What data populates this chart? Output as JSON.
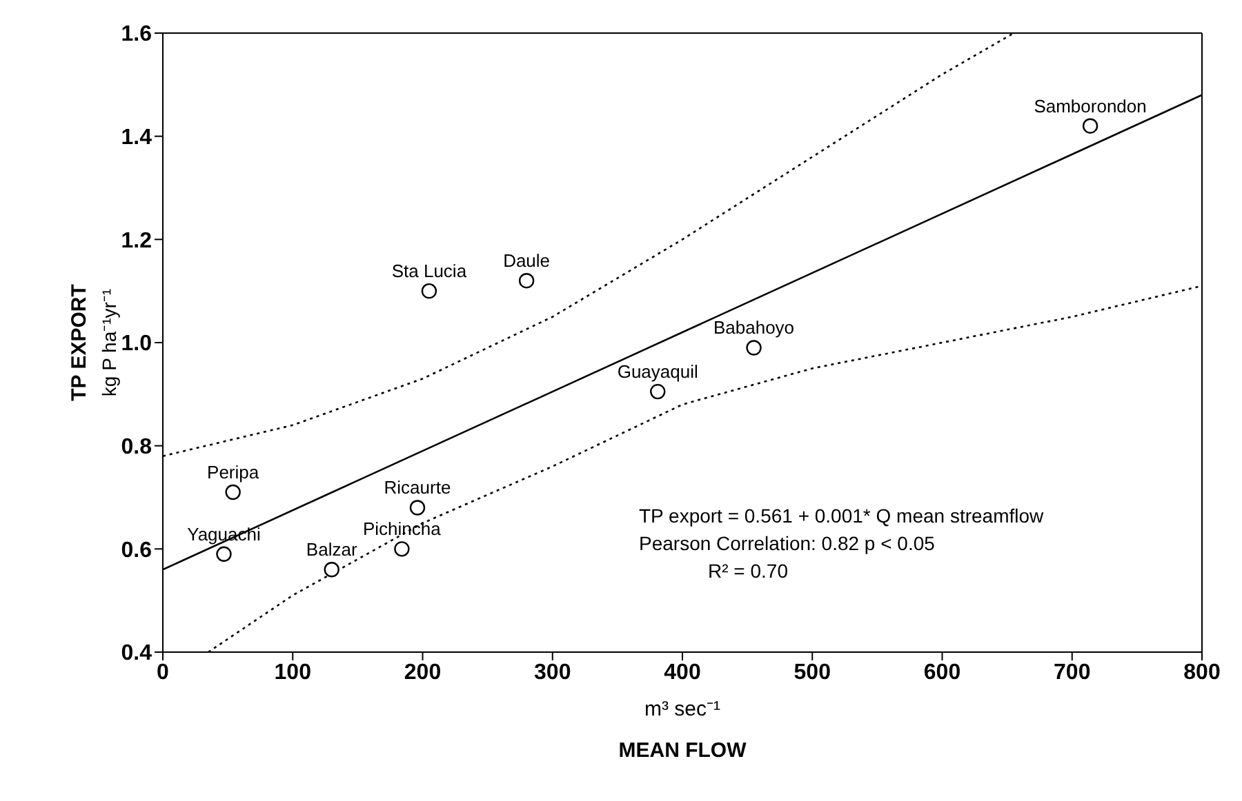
{
  "chart_data": {
    "type": "scatter",
    "xlabel": "m³ sec⁻¹\nMEAN FLOW",
    "ylabel": "TP EXPORT\nkg P ha⁻¹yr⁻¹",
    "xlim": [
      0,
      800
    ],
    "xticks": [
      0,
      100,
      200,
      300,
      400,
      500,
      600,
      700,
      800
    ],
    "ylim": [
      0.4,
      1.6
    ],
    "yticks": [
      0.4,
      0.6,
      0.8,
      {
        "value": 1,
        "label": "1.0"
      },
      1.2,
      1.4,
      1.6
    ],
    "grid": false,
    "legend": false,
    "series": [
      {
        "marker": "circle",
        "color": "#000000",
        "x": [
          714,
          280,
          205,
          455,
          381,
          54,
          196,
          47,
          184,
          130
        ],
        "values": [
          1.42,
          1.12,
          1.1,
          0.99,
          0.905,
          0.71,
          0.68,
          0.59,
          0.6,
          0.56
        ]
      },
      {
        "type": "line",
        "marker": "none",
        "color": "#000000",
        "line_style": "solid",
        "x": [
          0,
          800
        ],
        "values": [
          0.56,
          1.48
        ]
      },
      {
        "type": "line",
        "marker": "none",
        "color": "#000000",
        "line_style": "dotted",
        "x": [
          0,
          100,
          200,
          300,
          400,
          500,
          600,
          655
        ],
        "values": [
          0.78,
          0.84,
          0.93,
          1.05,
          1.2,
          1.36,
          1.52,
          1.6
        ]
      },
      {
        "type": "line",
        "marker": "none",
        "color": "#000000",
        "line_style": "dotted",
        "x": [
          35,
          100,
          200,
          300,
          400,
          500,
          600,
          700,
          800
        ],
        "values": [
          0.4,
          0.51,
          0.65,
          0.76,
          0.88,
          0.95,
          1.0,
          1.05,
          1.11
        ]
      }
    ],
    "annotations": [
      {
        "text": "Samborondon",
        "x": 714,
        "y": 1.42
      },
      {
        "text": "Daule",
        "x": 280,
        "y": 1.12
      },
      {
        "text": "Sta Lucia",
        "x": 205,
        "y": 1.1
      },
      {
        "text": "Babahoyo",
        "x": 455,
        "y": 0.99
      },
      {
        "text": "Guayaquil",
        "x": 381,
        "y": 0.905
      },
      {
        "text": "Peripa",
        "x": 54,
        "y": 0.71
      },
      {
        "text": "Ricaurte",
        "x": 196,
        "y": 0.68
      },
      {
        "text": "Yaguachi",
        "x": 47,
        "y": 0.59
      },
      {
        "text": "Pichincha",
        "x": 184,
        "y": 0.6
      },
      {
        "text": "Balzar",
        "x": 130,
        "y": 0.56
      },
      "TP export = 0.561 + 0.001* Q mean streamflow",
      "Pearson Correlation: 0.82  p < 0.05",
      "R² = 0.70"
    ]
  }
}
